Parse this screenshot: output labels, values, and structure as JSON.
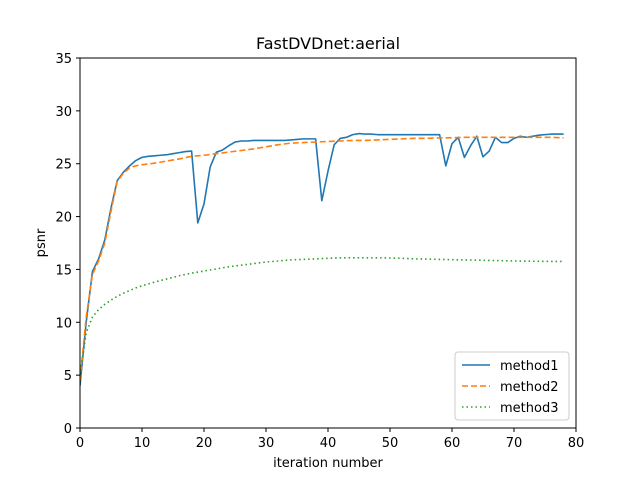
{
  "chart_data": {
    "type": "line",
    "title": "FastDVDnet:aerial",
    "xlabel": "iteration number",
    "ylabel": "psnr",
    "xlim": [
      0,
      80
    ],
    "ylim": [
      0,
      35
    ],
    "xticks": [
      0,
      10,
      20,
      30,
      40,
      50,
      60,
      70,
      80
    ],
    "yticks": [
      0,
      5,
      10,
      15,
      20,
      25,
      30,
      35
    ],
    "grid": false,
    "legend_position": "lower-right",
    "series": [
      {
        "name": "method1",
        "color": "#1f77b4",
        "style": "solid",
        "x": [
          0,
          1,
          2,
          3,
          4,
          5,
          6,
          7,
          8,
          9,
          10,
          11,
          12,
          13,
          14,
          15,
          16,
          17,
          18,
          19,
          20,
          21,
          22,
          23,
          24,
          25,
          26,
          27,
          28,
          29,
          30,
          31,
          32,
          33,
          34,
          35,
          36,
          37,
          38,
          39,
          40,
          41,
          42,
          43,
          44,
          45,
          46,
          47,
          48,
          49,
          50,
          51,
          52,
          53,
          54,
          55,
          56,
          57,
          58,
          59,
          60,
          61,
          62,
          63,
          64,
          65,
          66,
          67,
          68,
          69,
          70,
          71,
          72,
          73,
          74,
          75,
          76,
          77,
          78
        ],
        "y": [
          4.0,
          10.0,
          14.8,
          16.0,
          17.8,
          20.8,
          23.4,
          24.2,
          24.8,
          25.3,
          25.6,
          25.7,
          25.75,
          25.8,
          25.85,
          25.95,
          26.05,
          26.15,
          26.2,
          19.4,
          21.2,
          24.7,
          26.1,
          26.3,
          26.7,
          27.05,
          27.15,
          27.15,
          27.2,
          27.2,
          27.2,
          27.2,
          27.2,
          27.2,
          27.25,
          27.3,
          27.35,
          27.35,
          27.35,
          21.5,
          24.3,
          26.8,
          27.4,
          27.5,
          27.75,
          27.85,
          27.8,
          27.8,
          27.75,
          27.75,
          27.75,
          27.75,
          27.75,
          27.75,
          27.75,
          27.75,
          27.75,
          27.75,
          27.75,
          24.8,
          26.9,
          27.5,
          25.6,
          26.7,
          27.6,
          25.65,
          26.2,
          27.5,
          27.0,
          27.0,
          27.4,
          27.6,
          27.5,
          27.6,
          27.7,
          27.75,
          27.8,
          27.8,
          27.8
        ]
      },
      {
        "name": "method2",
        "color": "#ff7f0e",
        "style": "dashed",
        "x": [
          0,
          1,
          2,
          3,
          4,
          5,
          6,
          7,
          8,
          9,
          10,
          12,
          14,
          16,
          18,
          20,
          22,
          24,
          26,
          28,
          30,
          32,
          34,
          36,
          38,
          40,
          42,
          44,
          46,
          48,
          50,
          52,
          54,
          56,
          58,
          60,
          62,
          64,
          66,
          68,
          70,
          72,
          74,
          76,
          78
        ],
        "y": [
          4.5,
          10.5,
          14.5,
          15.8,
          17.5,
          20.5,
          23.3,
          24.1,
          24.6,
          24.8,
          24.9,
          25.05,
          25.25,
          25.45,
          25.7,
          25.8,
          25.95,
          26.1,
          26.25,
          26.4,
          26.6,
          26.8,
          26.95,
          27.0,
          27.05,
          27.1,
          27.15,
          27.2,
          27.2,
          27.25,
          27.3,
          27.35,
          27.4,
          27.4,
          27.45,
          27.45,
          27.5,
          27.5,
          27.5,
          27.5,
          27.5,
          27.5,
          27.5,
          27.5,
          27.45
        ]
      },
      {
        "name": "method3",
        "color": "#2ca02c",
        "style": "dotted",
        "x": [
          0,
          1,
          2,
          3,
          4,
          5,
          6,
          7,
          8,
          9,
          10,
          12,
          14,
          16,
          18,
          20,
          22,
          24,
          26,
          28,
          30,
          32,
          34,
          36,
          38,
          40,
          42,
          44,
          46,
          48,
          50,
          52,
          54,
          56,
          58,
          60,
          62,
          64,
          66,
          68,
          70,
          72,
          74,
          76,
          78
        ],
        "y": [
          5.0,
          9.0,
          10.5,
          11.2,
          11.7,
          12.1,
          12.45,
          12.75,
          13.0,
          13.25,
          13.45,
          13.8,
          14.1,
          14.4,
          14.65,
          14.85,
          15.05,
          15.25,
          15.4,
          15.55,
          15.7,
          15.8,
          15.9,
          15.95,
          16.0,
          16.05,
          16.1,
          16.1,
          16.1,
          16.1,
          16.08,
          16.05,
          16.0,
          15.98,
          15.95,
          15.92,
          15.9,
          15.88,
          15.85,
          15.83,
          15.8,
          15.78,
          15.77,
          15.76,
          15.75
        ]
      }
    ]
  }
}
